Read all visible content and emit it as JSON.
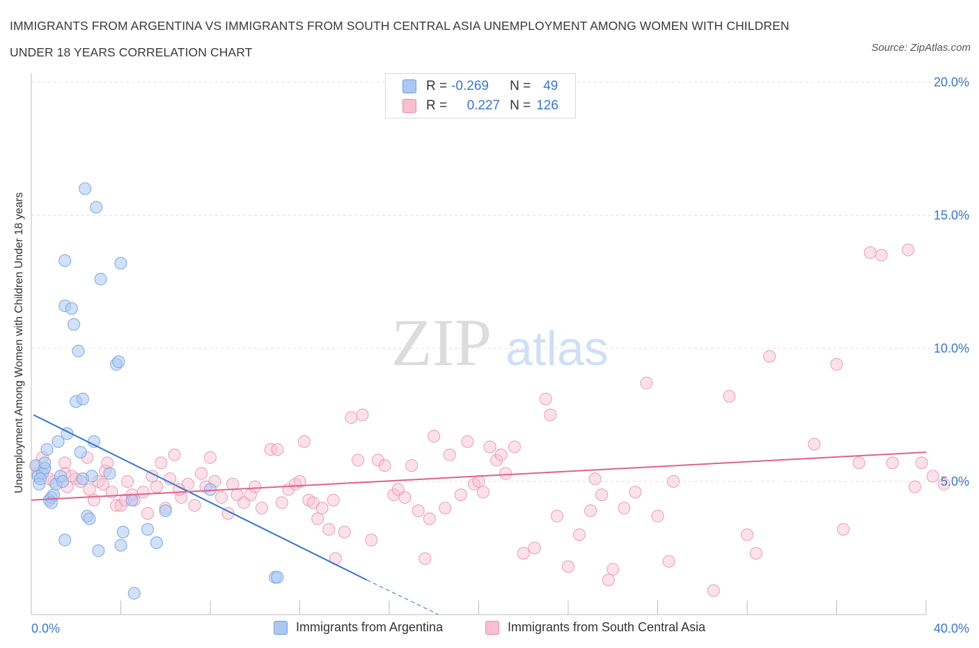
{
  "title": "IMMIGRANTS FROM ARGENTINA VS IMMIGRANTS FROM SOUTH CENTRAL ASIA UNEMPLOYMENT AMONG WOMEN WITH CHILDREN UNDER 18 YEARS CORRELATION CHART",
  "source": "Source: ZipAtlas.com",
  "watermark": {
    "zip": "ZIP",
    "atlas": "atlas"
  },
  "legend": {
    "r_label": "R =",
    "n_label": "N =",
    "series": [
      {
        "name": "Immigrants from Argentina",
        "r": "-0.269",
        "n": "49",
        "color": "#aac8f2",
        "stroke": "#6f9ee0"
      },
      {
        "name": "Immigrants from South Central Asia",
        "r": "0.227",
        "n": "126",
        "color": "#f7bfd0",
        "stroke": "#e98aa6"
      }
    ]
  },
  "chart_data": {
    "type": "scatter",
    "title": "IMMIGRANTS FROM ARGENTINA VS IMMIGRANTS FROM SOUTH CENTRAL ASIA UNEMPLOYMENT AMONG WOMEN WITH CHILDREN UNDER 18 YEARS CORRELATION CHART",
    "xlabel": "",
    "ylabel": "Unemployment Among Women with Children Under 18 years",
    "xlim": [
      0,
      40
    ],
    "ylim": [
      0,
      20
    ],
    "x_tick_labels": [
      "0.0%",
      "40.0%"
    ],
    "y_ticks": [
      5,
      10,
      15,
      20
    ],
    "y_tick_labels": [
      "5.0%",
      "10.0%",
      "15.0%",
      "20.0%"
    ],
    "grid": "horizontal dashed",
    "legend_placement": "bottom-center",
    "series": [
      {
        "name": "Immigrants from Argentina",
        "color": "#aac8f2",
        "line_color": "#2f74d0",
        "trend": {
          "x0": 0.1,
          "y0": 7.5,
          "x1": 15.0,
          "y1": 1.3,
          "dashed_to": [
            18.2,
            0
          ]
        },
        "points": [
          [
            0.2,
            5.6
          ],
          [
            0.3,
            5.2
          ],
          [
            0.35,
            4.9
          ],
          [
            0.5,
            5.3
          ],
          [
            0.6,
            5.5
          ],
          [
            0.4,
            5.1
          ],
          [
            0.7,
            6.2
          ],
          [
            0.8,
            4.3
          ],
          [
            0.9,
            4.4
          ],
          [
            1.0,
            4.5
          ],
          [
            1.1,
            4.9
          ],
          [
            1.2,
            6.5
          ],
          [
            1.3,
            5.2
          ],
          [
            1.4,
            5.0
          ],
          [
            1.5,
            2.8
          ],
          [
            1.5,
            13.3
          ],
          [
            1.5,
            11.6
          ],
          [
            1.6,
            6.8
          ],
          [
            1.8,
            11.5
          ],
          [
            1.9,
            10.9
          ],
          [
            2.1,
            9.9
          ],
          [
            2.0,
            8.0
          ],
          [
            2.3,
            8.1
          ],
          [
            2.2,
            6.1
          ],
          [
            2.5,
            3.7
          ],
          [
            2.6,
            3.6
          ],
          [
            2.7,
            5.2
          ],
          [
            2.8,
            6.5
          ],
          [
            2.9,
            15.3
          ],
          [
            3.0,
            2.4
          ],
          [
            3.1,
            12.6
          ],
          [
            3.5,
            5.3
          ],
          [
            3.8,
            9.4
          ],
          [
            3.9,
            9.5
          ],
          [
            4.0,
            2.6
          ],
          [
            4.0,
            13.2
          ],
          [
            4.1,
            3.1
          ],
          [
            4.5,
            4.3
          ],
          [
            4.6,
            0.8
          ],
          [
            5.2,
            3.2
          ],
          [
            5.6,
            2.7
          ],
          [
            6.0,
            3.9
          ],
          [
            8.0,
            4.7
          ],
          [
            10.9,
            1.4
          ],
          [
            11.0,
            1.4
          ],
          [
            2.4,
            16.0
          ],
          [
            0.6,
            5.7
          ],
          [
            0.9,
            4.2
          ],
          [
            2.3,
            5.1
          ]
        ]
      },
      {
        "name": "Immigrants from South Central Asia",
        "color": "#f7bfd0",
        "line_color": "#e0608a",
        "trend": {
          "x0": 0.0,
          "y0": 4.3,
          "x1": 40.0,
          "y1": 6.1
        },
        "points": [
          [
            0.2,
            5.6
          ],
          [
            0.3,
            5.3
          ],
          [
            0.5,
            5.9
          ],
          [
            0.6,
            5.5
          ],
          [
            1.0,
            5.0
          ],
          [
            1.5,
            5.7
          ],
          [
            1.5,
            5.3
          ],
          [
            1.6,
            4.8
          ],
          [
            2.0,
            5.1
          ],
          [
            2.2,
            5.0
          ],
          [
            2.5,
            5.9
          ],
          [
            2.8,
            4.3
          ],
          [
            3.0,
            5.0
          ],
          [
            3.3,
            5.4
          ],
          [
            3.4,
            5.7
          ],
          [
            3.6,
            4.6
          ],
          [
            3.8,
            4.1
          ],
          [
            4.0,
            4.1
          ],
          [
            4.2,
            4.3
          ],
          [
            4.3,
            5.0
          ],
          [
            4.5,
            4.5
          ],
          [
            4.6,
            4.3
          ],
          [
            5.0,
            4.6
          ],
          [
            5.2,
            3.8
          ],
          [
            5.6,
            4.8
          ],
          [
            5.8,
            5.7
          ],
          [
            6.0,
            4.0
          ],
          [
            6.2,
            5.1
          ],
          [
            6.4,
            6.0
          ],
          [
            6.7,
            4.4
          ],
          [
            7.0,
            4.9
          ],
          [
            7.3,
            4.1
          ],
          [
            7.6,
            5.3
          ],
          [
            7.8,
            4.8
          ],
          [
            8.0,
            5.9
          ],
          [
            8.2,
            5.0
          ],
          [
            8.5,
            4.4
          ],
          [
            8.8,
            3.8
          ],
          [
            9.0,
            4.9
          ],
          [
            9.2,
            4.5
          ],
          [
            9.5,
            4.2
          ],
          [
            9.8,
            4.5
          ],
          [
            10.0,
            4.8
          ],
          [
            10.3,
            4.0
          ],
          [
            10.7,
            6.2
          ],
          [
            11.0,
            6.2
          ],
          [
            11.2,
            4.2
          ],
          [
            11.5,
            4.7
          ],
          [
            11.8,
            4.9
          ],
          [
            12.0,
            5.0
          ],
          [
            12.2,
            6.5
          ],
          [
            12.4,
            4.3
          ],
          [
            12.6,
            4.2
          ],
          [
            12.8,
            3.6
          ],
          [
            13.0,
            4.0
          ],
          [
            13.3,
            3.2
          ],
          [
            13.5,
            4.3
          ],
          [
            13.6,
            2.1
          ],
          [
            14.0,
            3.1
          ],
          [
            14.3,
            7.4
          ],
          [
            14.6,
            5.8
          ],
          [
            14.8,
            7.5
          ],
          [
            15.2,
            2.8
          ],
          [
            15.5,
            5.8
          ],
          [
            15.8,
            5.6
          ],
          [
            16.2,
            4.5
          ],
          [
            16.4,
            4.7
          ],
          [
            16.7,
            4.4
          ],
          [
            17.0,
            5.6
          ],
          [
            17.3,
            3.9
          ],
          [
            17.6,
            2.1
          ],
          [
            17.8,
            3.6
          ],
          [
            18.0,
            6.7
          ],
          [
            18.5,
            4.0
          ],
          [
            18.7,
            6.0
          ],
          [
            19.2,
            4.5
          ],
          [
            19.5,
            6.5
          ],
          [
            19.8,
            4.9
          ],
          [
            20.0,
            5.0
          ],
          [
            20.2,
            4.6
          ],
          [
            20.5,
            6.3
          ],
          [
            20.8,
            5.8
          ],
          [
            21.0,
            6.0
          ],
          [
            21.2,
            5.3
          ],
          [
            21.6,
            6.3
          ],
          [
            22.0,
            2.3
          ],
          [
            22.5,
            2.5
          ],
          [
            23.0,
            8.1
          ],
          [
            23.2,
            7.5
          ],
          [
            23.5,
            3.7
          ],
          [
            24.0,
            1.8
          ],
          [
            24.5,
            3.0
          ],
          [
            25.0,
            3.9
          ],
          [
            25.2,
            5.1
          ],
          [
            25.5,
            4.5
          ],
          [
            25.8,
            1.3
          ],
          [
            26.0,
            1.7
          ],
          [
            26.5,
            4.0
          ],
          [
            27.0,
            4.6
          ],
          [
            27.5,
            8.7
          ],
          [
            28.0,
            3.7
          ],
          [
            28.5,
            2.0
          ],
          [
            28.7,
            5.0
          ],
          [
            30.5,
            0.9
          ],
          [
            31.2,
            8.2
          ],
          [
            32.0,
            3.0
          ],
          [
            32.4,
            2.3
          ],
          [
            33.0,
            9.7
          ],
          [
            35.0,
            6.4
          ],
          [
            36.0,
            9.4
          ],
          [
            36.3,
            3.2
          ],
          [
            37.0,
            5.7
          ],
          [
            37.5,
            13.6
          ],
          [
            38.0,
            13.5
          ],
          [
            38.5,
            5.7
          ],
          [
            39.2,
            13.7
          ],
          [
            39.5,
            4.8
          ],
          [
            39.8,
            5.7
          ],
          [
            40.3,
            5.2
          ],
          [
            40.8,
            4.9
          ],
          [
            0.8,
            5.1
          ],
          [
            1.8,
            5.2
          ],
          [
            2.6,
            4.7
          ],
          [
            3.2,
            4.9
          ],
          [
            5.4,
            5.2
          ],
          [
            6.6,
            4.7
          ]
        ]
      }
    ]
  }
}
